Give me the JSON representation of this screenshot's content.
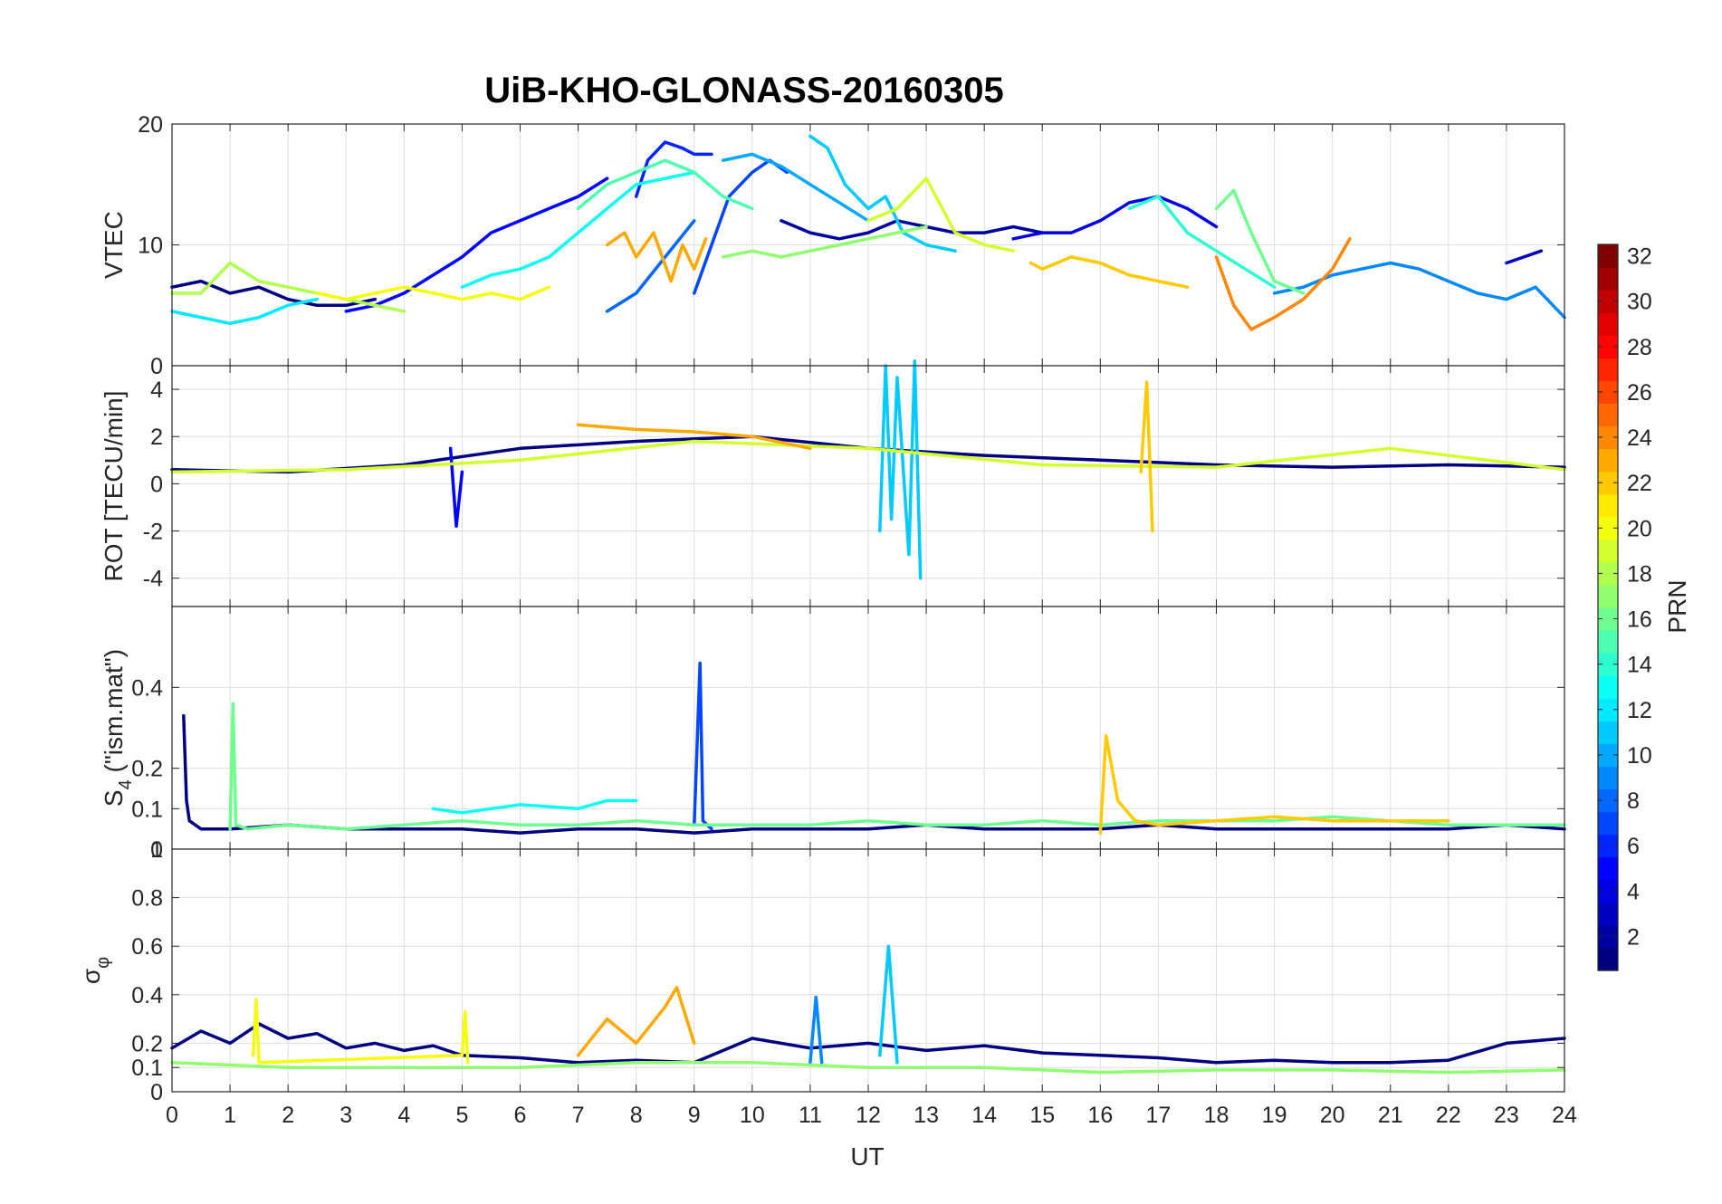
{
  "chart_data": {
    "type": "line",
    "title": "UiB-KHO-GLONASS-20160305",
    "xlabel": "UT",
    "xlim": [
      0,
      24
    ],
    "xticks": [
      "0",
      "1",
      "2",
      "3",
      "4",
      "5",
      "6",
      "7",
      "8",
      "9",
      "10",
      "11",
      "12",
      "13",
      "14",
      "15",
      "16",
      "17",
      "18",
      "19",
      "20",
      "21",
      "22",
      "23",
      "24"
    ],
    "colorbar": {
      "label": "PRN",
      "range": [
        1,
        32
      ],
      "ticks": [
        "2",
        "4",
        "6",
        "8",
        "10",
        "12",
        "14",
        "16",
        "18",
        "20",
        "22",
        "24",
        "26",
        "28",
        "30",
        "32"
      ],
      "colormap": "jet"
    },
    "panels": [
      {
        "name": "vtec",
        "ylabel": "VTEC",
        "ylim": [
          0,
          20
        ],
        "yticks": [
          "0",
          "10",
          "20"
        ],
        "series": [
          {
            "prn": 1,
            "x": [
              0,
              0.5,
              1,
              1.5,
              2,
              2.5,
              3,
              3.5
            ],
            "y": [
              6.5,
              7.0,
              6.0,
              6.5,
              5.5,
              5.0,
              5.0,
              5.5
            ]
          },
          {
            "prn": 2,
            "x": [
              10.5,
              11,
              11.5,
              12,
              12.5,
              13,
              13.5,
              14,
              14.5,
              15
            ],
            "y": [
              12,
              11,
              10.5,
              11,
              12,
              11.5,
              11,
              11,
              11.5,
              11
            ]
          },
          {
            "prn": 3,
            "x": [
              23,
              23.3,
              23.6
            ],
            "y": [
              8.5,
              9,
              9.5
            ]
          },
          {
            "prn": 4,
            "x": [
              14.5,
              15,
              15.5,
              16,
              16.5,
              17,
              17.5,
              18
            ],
            "y": [
              10.5,
              11,
              11,
              12,
              13.5,
              14,
              13,
              11.5
            ]
          },
          {
            "prn": 5,
            "x": [
              3,
              3.5,
              4,
              4.5,
              5,
              5.5,
              6,
              6.5,
              7,
              7.5
            ],
            "y": [
              4.5,
              5,
              6,
              7.5,
              9,
              11,
              12,
              13,
              14,
              15.5
            ]
          },
          {
            "prn": 6,
            "x": [
              8,
              8.2,
              8.5,
              8.8,
              9,
              9.3
            ],
            "y": [
              14,
              17,
              18.5,
              18,
              17.5,
              17.5
            ]
          },
          {
            "prn": 7,
            "x": [
              9,
              9.3,
              9.6,
              10,
              10.3,
              10.6
            ],
            "y": [
              6,
              10,
              14,
              16,
              17,
              16
            ]
          },
          {
            "prn": 8,
            "x": [
              7.5,
              8,
              8.5,
              9
            ],
            "y": [
              4.5,
              6,
              9,
              12
            ]
          },
          {
            "prn": 9,
            "x": [
              19,
              19.5,
              20,
              20.5,
              21,
              21.5,
              22,
              22.5,
              23,
              23.5,
              24
            ],
            "y": [
              6,
              6.5,
              7.5,
              8,
              8.5,
              8,
              7,
              6,
              5.5,
              6.5,
              4
            ]
          },
          {
            "prn": 10,
            "x": [
              9.5,
              10,
              10.5,
              11,
              11.5,
              12
            ],
            "y": [
              17,
              17.5,
              16.5,
              15,
              13.5,
              12
            ]
          },
          {
            "prn": 11,
            "x": [
              11,
              11.3,
              11.6,
              12,
              12.3,
              12.6,
              13,
              13.5
            ],
            "y": [
              19,
              18,
              15,
              13,
              14,
              11,
              10,
              9.5
            ]
          },
          {
            "prn": 12,
            "x": [
              0,
              0.5,
              1,
              1.5,
              2,
              2.5
            ],
            "y": [
              4.5,
              4,
              3.5,
              4,
              5,
              5.5
            ]
          },
          {
            "prn": 13,
            "x": [
              5,
              5.5,
              6,
              6.5,
              7,
              7.5,
              8,
              8.5,
              9
            ],
            "y": [
              6.5,
              7.5,
              8,
              9,
              11,
              13,
              15,
              15.5,
              16
            ]
          },
          {
            "prn": 14,
            "x": [
              16.5,
              17,
              17.5,
              18,
              18.5,
              19
            ],
            "y": [
              13,
              14,
              11,
              9.5,
              8,
              6.5
            ]
          },
          {
            "prn": 15,
            "x": [
              7,
              7.5,
              8,
              8.5,
              9,
              9.5,
              10
            ],
            "y": [
              13,
              15,
              16,
              17,
              16,
              14,
              13
            ]
          },
          {
            "prn": 16,
            "x": [
              18,
              18.3,
              18.6,
              19,
              19.5
            ],
            "y": [
              13,
              14.5,
              11,
              7,
              6
            ]
          },
          {
            "prn": 17,
            "x": [
              9.5,
              10,
              10.5,
              11,
              11.5,
              12,
              12.5,
              13
            ],
            "y": [
              9,
              9.5,
              9,
              9.5,
              10,
              10.5,
              11,
              11.5
            ]
          },
          {
            "prn": 18,
            "x": [
              0,
              0.5,
              1,
              1.5,
              2,
              2.5,
              3,
              3.5,
              4
            ],
            "y": [
              6,
              6,
              8.5,
              7,
              6.5,
              6,
              5.5,
              5,
              4.5
            ]
          },
          {
            "prn": 19,
            "x": [
              12,
              12.5,
              13,
              13.5,
              14,
              14.5
            ],
            "y": [
              12,
              13,
              15.5,
              11,
              10,
              9.5
            ]
          },
          {
            "prn": 20,
            "x": [
              2.5,
              3,
              3.5,
              4,
              4.5,
              5,
              5.5,
              6,
              6.5
            ],
            "y": [
              6,
              5.5,
              6,
              6.5,
              6,
              5.5,
              6,
              5.5,
              6.5
            ]
          },
          {
            "prn": 22,
            "x": [
              14.8,
              15,
              15.5,
              16,
              16.5,
              17,
              17.5
            ],
            "y": [
              8.5,
              8,
              9,
              8.5,
              7.5,
              7,
              6.5
            ]
          },
          {
            "prn": 23,
            "x": [
              7.5,
              7.8,
              8,
              8.3,
              8.6,
              8.8,
              9,
              9.2
            ],
            "y": [
              10,
              11,
              9,
              11,
              7,
              10,
              8,
              10.5
            ]
          },
          {
            "prn": 24,
            "x": [
              18,
              18.3,
              18.6,
              19,
              19.5,
              20,
              20.3
            ],
            "y": [
              9,
              5,
              3,
              4,
              5.5,
              8,
              10.5
            ]
          }
        ]
      },
      {
        "name": "rot",
        "ylabel": "ROT [TECU/min]",
        "ylim": [
          -5.2,
          5
        ],
        "yticks": [
          "-4",
          "-2",
          "0",
          "2",
          "4"
        ],
        "series": [
          {
            "prn": 1,
            "x": [
              0,
              2,
              4,
              6,
              8,
              10,
              12,
              14,
              16,
              18,
              20,
              22,
              24
            ],
            "y": [
              0.6,
              0.5,
              0.8,
              1.5,
              1.8,
              2.0,
              1.5,
              1.2,
              1.0,
              0.8,
              0.7,
              0.8,
              0.7
            ]
          },
          {
            "prn": 5,
            "x": [
              4.8,
              4.9,
              5.0
            ],
            "y": [
              1.5,
              -1.8,
              0.5
            ]
          },
          {
            "prn": 11,
            "x": [
              12.2,
              12.3,
              12.4,
              12.5,
              12.7,
              12.8,
              12.9
            ],
            "y": [
              -2,
              5.0,
              -1.5,
              4.5,
              -3,
              5.2,
              -4.0
            ]
          },
          {
            "prn": 19,
            "x": [
              0,
              3,
              6,
              9,
              12,
              15,
              18,
              21,
              24
            ],
            "y": [
              0.5,
              0.6,
              1.0,
              1.8,
              1.5,
              0.8,
              0.7,
              1.5,
              0.6
            ]
          },
          {
            "prn": 23,
            "x": [
              7,
              8,
              9,
              10,
              11
            ],
            "y": [
              2.5,
              2.3,
              2.2,
              2.0,
              1.5
            ]
          },
          {
            "prn": 22,
            "x": [
              16.7,
              16.8,
              16.9
            ],
            "y": [
              0.5,
              4.3,
              -2.0
            ]
          }
        ]
      },
      {
        "name": "s4",
        "ylabel": "S4 (\"ism.mat\")",
        "ylabel_main": "S",
        "ylabel_sub": "4",
        "ylabel_rest": " (\"ism.mat\")",
        "ylim": [
          0,
          0.6
        ],
        "yticks": [
          "0",
          "0.1",
          "0.2",
          "0.4"
        ],
        "series": [
          {
            "prn": 1,
            "x": [
              0.2,
              0.25,
              0.3,
              0.5,
              1,
              2,
              3,
              4,
              5,
              6,
              7,
              8,
              9,
              10,
              11,
              12,
              13,
              14,
              15,
              16,
              17,
              18,
              19,
              20,
              21,
              22,
              23,
              24
            ],
            "y": [
              0.33,
              0.12,
              0.07,
              0.05,
              0.05,
              0.06,
              0.05,
              0.05,
              0.05,
              0.04,
              0.05,
              0.05,
              0.04,
              0.05,
              0.05,
              0.05,
              0.06,
              0.05,
              0.05,
              0.05,
              0.06,
              0.05,
              0.05,
              0.05,
              0.05,
              0.05,
              0.06,
              0.05
            ]
          },
          {
            "prn": 7,
            "x": [
              9.0,
              9.1,
              9.15,
              9.3
            ],
            "y": [
              0.06,
              0.46,
              0.07,
              0.05
            ]
          },
          {
            "prn": 16,
            "x": [
              1.0,
              1.05,
              1.1,
              1.3,
              2,
              3,
              4,
              5,
              6,
              7,
              8,
              9,
              10,
              11,
              12,
              13,
              14,
              15,
              16,
              17,
              18,
              19,
              20,
              21,
              22,
              23,
              24
            ],
            "y": [
              0.05,
              0.36,
              0.06,
              0.05,
              0.06,
              0.05,
              0.06,
              0.07,
              0.06,
              0.06,
              0.07,
              0.06,
              0.06,
              0.06,
              0.07,
              0.06,
              0.06,
              0.07,
              0.06,
              0.07,
              0.07,
              0.07,
              0.08,
              0.07,
              0.06,
              0.06,
              0.06
            ]
          },
          {
            "prn": 22,
            "x": [
              16.0,
              16.1,
              16.3,
              16.6,
              17,
              18,
              19,
              20,
              21,
              22
            ],
            "y": [
              0.04,
              0.28,
              0.12,
              0.07,
              0.06,
              0.07,
              0.08,
              0.07,
              0.07,
              0.07
            ]
          },
          {
            "prn": 13,
            "x": [
              4.5,
              5,
              6,
              7,
              7.5,
              8
            ],
            "y": [
              0.1,
              0.09,
              0.11,
              0.1,
              0.12,
              0.12
            ]
          }
        ]
      },
      {
        "name": "sigma_phi",
        "ylabel": "σ φ",
        "ylabel_main": "σ",
        "ylabel_sub": "φ",
        "ylim": [
          0,
          1
        ],
        "yticks": [
          "0",
          "0.1",
          "0.2",
          "0.4",
          "0.6",
          "0.8",
          "1"
        ],
        "series": [
          {
            "prn": 1,
            "x": [
              0,
              0.5,
              1,
              1.5,
              2,
              2.5,
              3,
              3.5,
              4,
              4.5,
              5,
              6,
              7,
              8,
              9,
              10,
              11,
              12,
              13,
              14,
              15,
              16,
              17,
              18,
              19,
              20,
              21,
              22,
              23,
              24
            ],
            "y": [
              0.18,
              0.25,
              0.2,
              0.28,
              0.22,
              0.24,
              0.18,
              0.2,
              0.17,
              0.19,
              0.15,
              0.14,
              0.12,
              0.13,
              0.12,
              0.22,
              0.18,
              0.2,
              0.17,
              0.19,
              0.16,
              0.15,
              0.14,
              0.12,
              0.13,
              0.12,
              0.12,
              0.13,
              0.2,
              0.22
            ]
          },
          {
            "prn": 11,
            "x": [
              12.2,
              12.35,
              12.5
            ],
            "y": [
              0.15,
              0.6,
              0.12
            ]
          },
          {
            "prn": 9,
            "x": [
              11.0,
              11.1,
              11.2
            ],
            "y": [
              0.12,
              0.39,
              0.12
            ]
          },
          {
            "prn": 23,
            "x": [
              7,
              7.5,
              8,
              8.5,
              8.7,
              9
            ],
            "y": [
              0.15,
              0.3,
              0.2,
              0.35,
              0.43,
              0.2
            ]
          },
          {
            "prn": 20,
            "x": [
              1.4,
              1.45,
              1.5,
              5,
              5.05,
              5.1
            ],
            "y": [
              0.15,
              0.38,
              0.12,
              0.15,
              0.33,
              0.12
            ]
          },
          {
            "prn": 17,
            "x": [
              0,
              2,
              4,
              6,
              8,
              10,
              12,
              14,
              16,
              18,
              20,
              22,
              24
            ],
            "y": [
              0.12,
              0.1,
              0.1,
              0.1,
              0.12,
              0.12,
              0.1,
              0.1,
              0.08,
              0.09,
              0.09,
              0.08,
              0.09
            ]
          }
        ]
      }
    ]
  }
}
